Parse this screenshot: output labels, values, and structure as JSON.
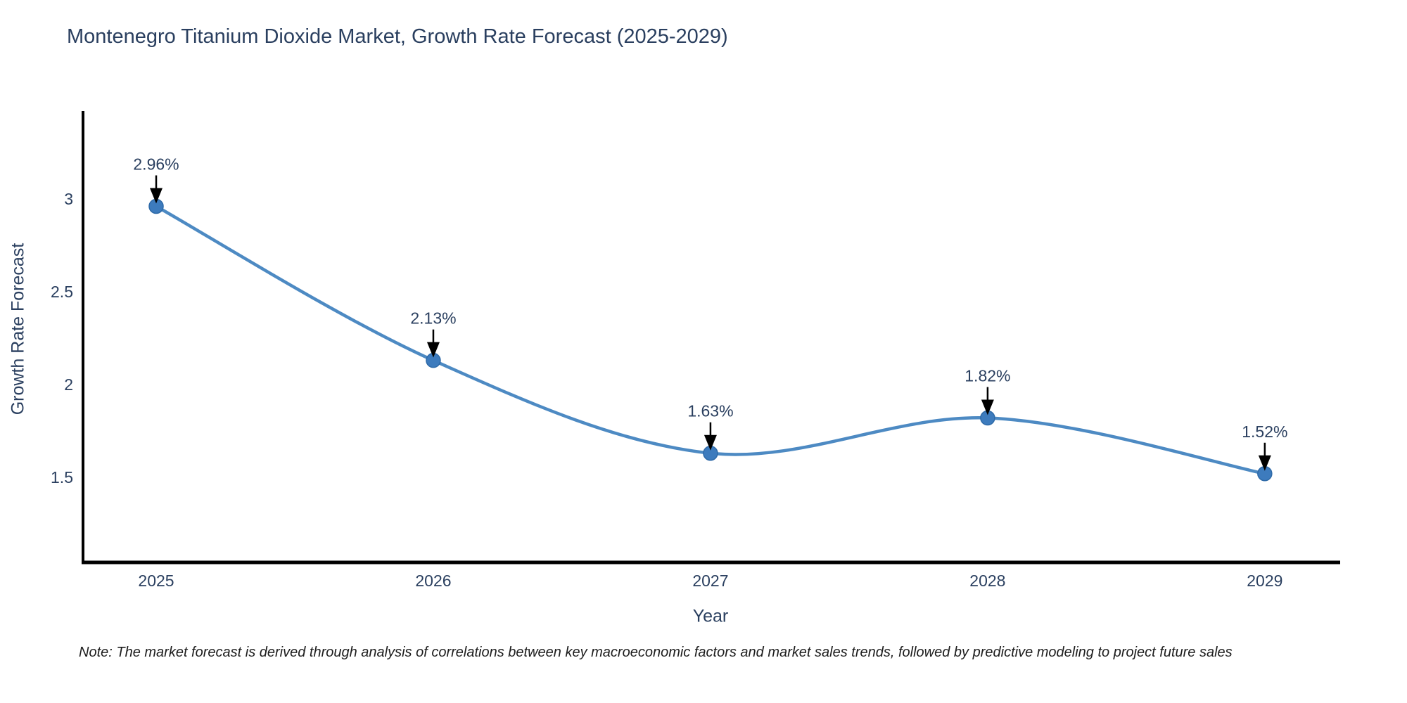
{
  "title": "Montenegro Titanium Dioxide Market, Growth Rate Forecast (2025-2029)",
  "note": "Note: The market forecast is derived through analysis of correlations between key macroeconomic factors and market sales trends, followed by predictive modeling to project future sales",
  "chart_data": {
    "type": "line",
    "title": "Montenegro Titanium Dioxide Market, Growth Rate Forecast (2025-2029)",
    "xlabel": "Year",
    "ylabel": "Growth Rate Forecast",
    "x": [
      2025,
      2026,
      2027,
      2028,
      2029
    ],
    "values": [
      2.96,
      2.13,
      1.63,
      1.82,
      1.52
    ],
    "point_labels": [
      "2.96%",
      "2.13%",
      "1.63%",
      "1.82%",
      "1.52%"
    ],
    "xticks": [
      2025,
      2026,
      2027,
      2028,
      2029
    ],
    "yticks": [
      1.5,
      2,
      2.5,
      3
    ],
    "xlim": [
      2024.736,
      2029.272
    ],
    "ylim": [
      1.042,
      3.473
    ],
    "line_shape": "spline",
    "grid": false,
    "legend": "none",
    "colors": {
      "line": "#4d8ac3",
      "marker": "#3d7bbd",
      "marker_edge": "#2e6aa8",
      "axis": "#000000",
      "text": "#2a3f5f",
      "annotation_arrow": "#000000"
    }
  }
}
